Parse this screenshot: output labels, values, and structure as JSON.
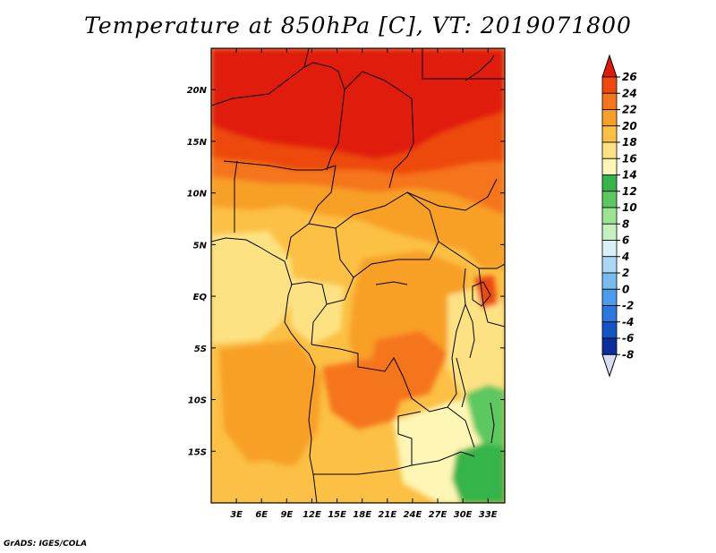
{
  "title": "Temperature at 850hPa [C], VT: 2019071800",
  "credit": "GrADS: IGES/COLA",
  "map": {
    "variable": "Temperature at 850hPa",
    "units": "C",
    "valid_time": "2019071800",
    "region": "Central Africa",
    "lon_range": [
      0,
      35
    ],
    "lat_range": [
      -20,
      24
    ],
    "lon_ticks": [
      "3E",
      "6E",
      "9E",
      "12E",
      "15E",
      "18E",
      "21E",
      "24E",
      "27E",
      "30E",
      "33E"
    ],
    "lat_ticks": [
      "20N",
      "15N",
      "10N",
      "5N",
      "EQ",
      "5S",
      "10S",
      "15S"
    ]
  },
  "colorbar": {
    "labels": [
      "26",
      "24",
      "22",
      "20",
      "18",
      "16",
      "14",
      "12",
      "10",
      "8",
      "6",
      "4",
      "2",
      "0",
      "-2",
      "-4",
      "-6",
      "-8"
    ],
    "colors": [
      "#e01a0a",
      "#ee4a10",
      "#f5751a",
      "#f89f28",
      "#fbc044",
      "#fde283",
      "#fef6b4",
      "#35b44a",
      "#5cc85f",
      "#9be494",
      "#c5f0bf",
      "#d9f1f6",
      "#a8d8f4",
      "#78bbf0",
      "#4b9cec",
      "#2b78e0",
      "#1453c4",
      "#0a2e9b",
      "#0a0e70"
    ],
    "top_color": "#e01a0a",
    "bottom_color": "#d8dcf5"
  }
}
